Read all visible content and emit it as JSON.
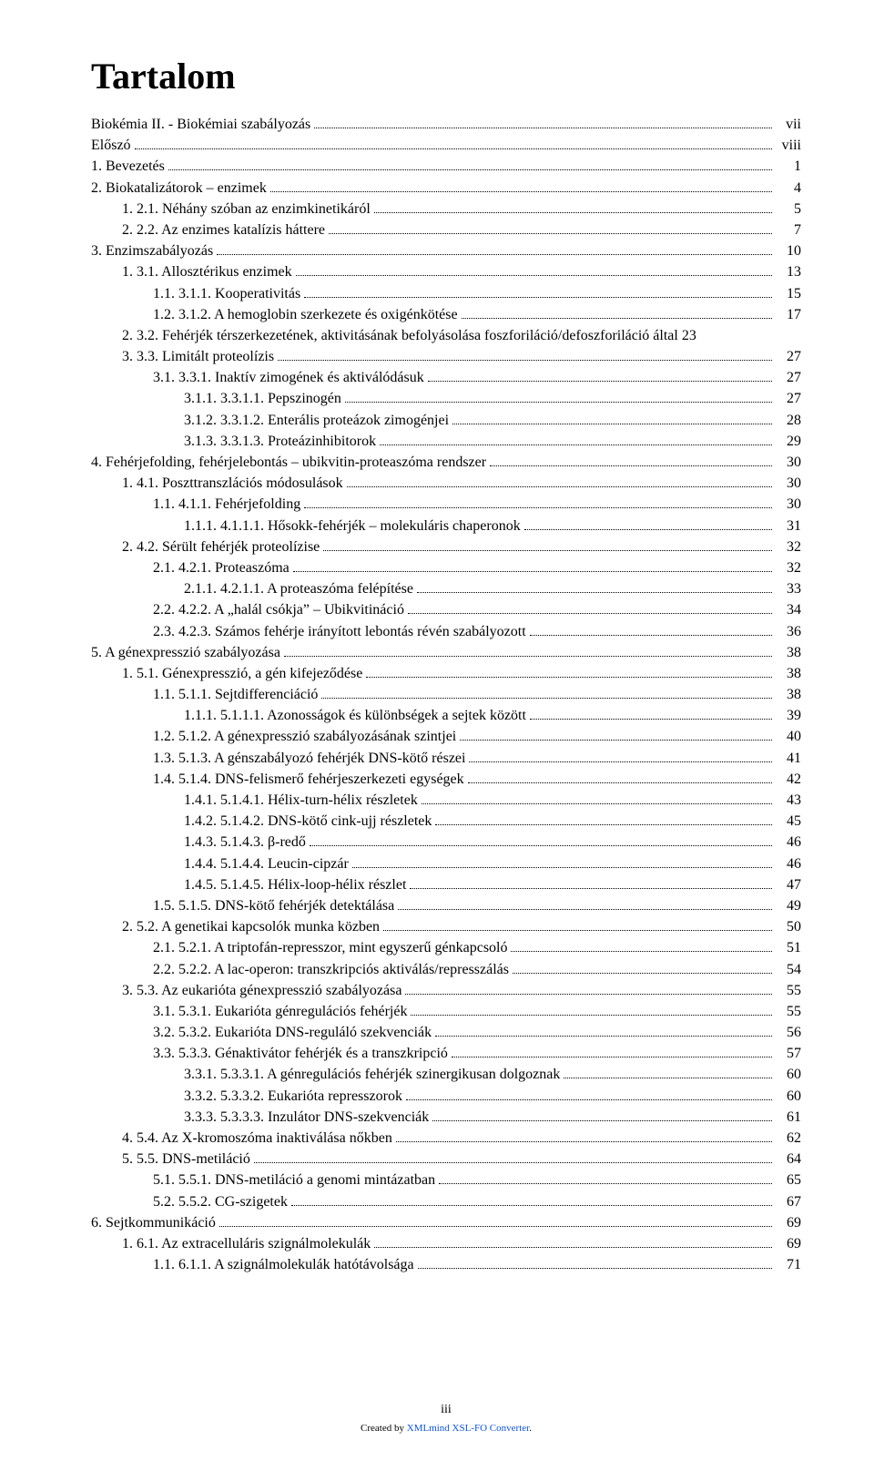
{
  "title": "Tartalom",
  "footer": {
    "page": "iii",
    "created_prefix": "Created by ",
    "created_link": "XMLmind XSL-FO Converter",
    "created_suffix": "."
  },
  "colors": {
    "text": "#000000",
    "bg": "#ffffff",
    "link": "#1155cc"
  },
  "typography": {
    "title_fontsize": 40,
    "body_fontsize": 16,
    "footer_fontsize": 11
  },
  "entries": [
    {
      "indent": 0,
      "label": "Biokémia II. - Biokémiai szabályozás",
      "page": "vii"
    },
    {
      "indent": 0,
      "label": "Előszó",
      "page": "viii"
    },
    {
      "indent": 0,
      "label": "1. Bevezetés",
      "page": "1"
    },
    {
      "indent": 0,
      "label": "2. Biokatalizátorok – enzimek",
      "page": "4"
    },
    {
      "indent": 1,
      "label": "1. 2.1. Néhány szóban az enzimkinetikáról",
      "page": "5"
    },
    {
      "indent": 1,
      "label": "2. 2.2. Az enzimes katalízis háttere",
      "page": "7"
    },
    {
      "indent": 0,
      "label": "3. Enzimszabályozás",
      "page": "10"
    },
    {
      "indent": 1,
      "label": "1. 3.1. Allosztérikus enzimek",
      "page": "13"
    },
    {
      "indent": 2,
      "label": "1.1. 3.1.1. Kooperativitás",
      "page": "15"
    },
    {
      "indent": 2,
      "label": "1.2. 3.1.2. A hemoglobin szerkezete és oxigénkötése",
      "page": "17"
    },
    {
      "indent": 1,
      "label": "2. 3.2. Fehérjék térszerkezetének, aktivitásának befolyásolása foszforiláció/defoszforiláció által 23",
      "page": "",
      "inline_page": true
    },
    {
      "indent": 1,
      "label": "3. 3.3. Limitált proteolízis",
      "page": "27"
    },
    {
      "indent": 2,
      "label": "3.1. 3.3.1. Inaktív zimogének és aktiválódásuk",
      "page": "27"
    },
    {
      "indent": 3,
      "label": "3.1.1. 3.3.1.1. Pepszinogén",
      "page": "27"
    },
    {
      "indent": 3,
      "label": "3.1.2. 3.3.1.2. Enterális proteázok zimogénjei",
      "page": "28"
    },
    {
      "indent": 3,
      "label": "3.1.3. 3.3.1.3. Proteázinhibitorok",
      "page": "29"
    },
    {
      "indent": 0,
      "label": "4. Fehérjefolding, fehérjelebontás – ubikvitin-proteaszóma rendszer",
      "page": "30"
    },
    {
      "indent": 1,
      "label": "1. 4.1. Poszttranszlációs módosulások",
      "page": "30"
    },
    {
      "indent": 2,
      "label": "1.1. 4.1.1. Fehérjefolding",
      "page": "30"
    },
    {
      "indent": 3,
      "label": "1.1.1. 4.1.1.1. Hősokk-fehérjék – molekuláris chaperonok",
      "page": "31"
    },
    {
      "indent": 1,
      "label": "2. 4.2. Sérült fehérjék proteolízise",
      "page": "32"
    },
    {
      "indent": 2,
      "label": "2.1. 4.2.1. Proteaszóma",
      "page": "32"
    },
    {
      "indent": 3,
      "label": "2.1.1. 4.2.1.1. A proteaszóma felépítése",
      "page": "33"
    },
    {
      "indent": 2,
      "label": "2.2. 4.2.2. A „halál csókja” – Ubikvitináció",
      "page": "34"
    },
    {
      "indent": 2,
      "label": "2.3. 4.2.3. Számos fehérje irányított lebontás révén szabályozott",
      "page": "36"
    },
    {
      "indent": 0,
      "label": "5. A génexpresszió szabályozása",
      "page": "38"
    },
    {
      "indent": 1,
      "label": "1. 5.1. Génexpresszió, a gén kifejeződése",
      "page": "38"
    },
    {
      "indent": 2,
      "label": "1.1. 5.1.1. Sejtdifferenciáció",
      "page": "38"
    },
    {
      "indent": 3,
      "label": "1.1.1. 5.1.1.1. Azonosságok és különbségek a sejtek között",
      "page": "39"
    },
    {
      "indent": 2,
      "label": "1.2. 5.1.2. A génexpresszió szabályozásának szintjei",
      "page": "40"
    },
    {
      "indent": 2,
      "label": "1.3. 5.1.3. A génszabályozó fehérjék DNS-kötő részei",
      "page": "41"
    },
    {
      "indent": 2,
      "label": "1.4. 5.1.4. DNS-felismerő fehérjeszerkezeti egységek",
      "page": "42"
    },
    {
      "indent": 3,
      "label": "1.4.1. 5.1.4.1. Hélix-turn-hélix részletek",
      "page": "43"
    },
    {
      "indent": 3,
      "label": "1.4.2. 5.1.4.2. DNS-kötő cink-ujj részletek",
      "page": "45"
    },
    {
      "indent": 3,
      "label": "1.4.3. 5.1.4.3. β-redő",
      "page": "46"
    },
    {
      "indent": 3,
      "label": "1.4.4. 5.1.4.4. Leucin-cipzár",
      "page": "46"
    },
    {
      "indent": 3,
      "label": "1.4.5. 5.1.4.5. Hélix-loop-hélix részlet",
      "page": "47"
    },
    {
      "indent": 2,
      "label": "1.5. 5.1.5. DNS-kötő fehérjék detektálása",
      "page": "49"
    },
    {
      "indent": 1,
      "label": "2. 5.2. A genetikai kapcsolók munka közben",
      "page": "50"
    },
    {
      "indent": 2,
      "label": "2.1. 5.2.1. A triptofán-represszor, mint egyszerű génkapcsoló",
      "page": "51"
    },
    {
      "indent": 2,
      "label": "2.2. 5.2.2. A lac-operon: transzkripciós aktiválás/represszálás",
      "page": "54"
    },
    {
      "indent": 1,
      "label": "3. 5.3. Az eukarióta génexpresszió szabályozása",
      "page": "55"
    },
    {
      "indent": 2,
      "label": "3.1. 5.3.1. Eukarióta génregulációs fehérjék",
      "page": "55"
    },
    {
      "indent": 2,
      "label": "3.2. 5.3.2. Eukarióta DNS-reguláló szekvenciák",
      "page": "56"
    },
    {
      "indent": 2,
      "label": "3.3. 5.3.3. Génaktivátor fehérjék és a transzkripció",
      "page": "57"
    },
    {
      "indent": 3,
      "label": "3.3.1. 5.3.3.1. A génregulációs fehérjék szinergikusan dolgoznak",
      "page": "60"
    },
    {
      "indent": 3,
      "label": "3.3.2. 5.3.3.2. Eukarióta represszorok",
      "page": "60"
    },
    {
      "indent": 3,
      "label": "3.3.3. 5.3.3.3. Inzulátor DNS-szekvenciák",
      "page": "61"
    },
    {
      "indent": 1,
      "label": "4. 5.4. Az X-kromoszóma inaktiválása nőkben",
      "page": "62"
    },
    {
      "indent": 1,
      "label": "5. 5.5. DNS-metiláció",
      "page": "64"
    },
    {
      "indent": 2,
      "label": "5.1. 5.5.1. DNS-metiláció a genomi mintázatban",
      "page": "65"
    },
    {
      "indent": 2,
      "label": "5.2. 5.5.2. CG-szigetek",
      "page": "67"
    },
    {
      "indent": 0,
      "label": "6. Sejtkommunikáció",
      "page": "69"
    },
    {
      "indent": 1,
      "label": "1. 6.1. Az extracelluláris szignálmolekulák",
      "page": "69"
    },
    {
      "indent": 2,
      "label": "1.1. 6.1.1. A szignálmolekulák hatótávolsága",
      "page": "71"
    }
  ]
}
